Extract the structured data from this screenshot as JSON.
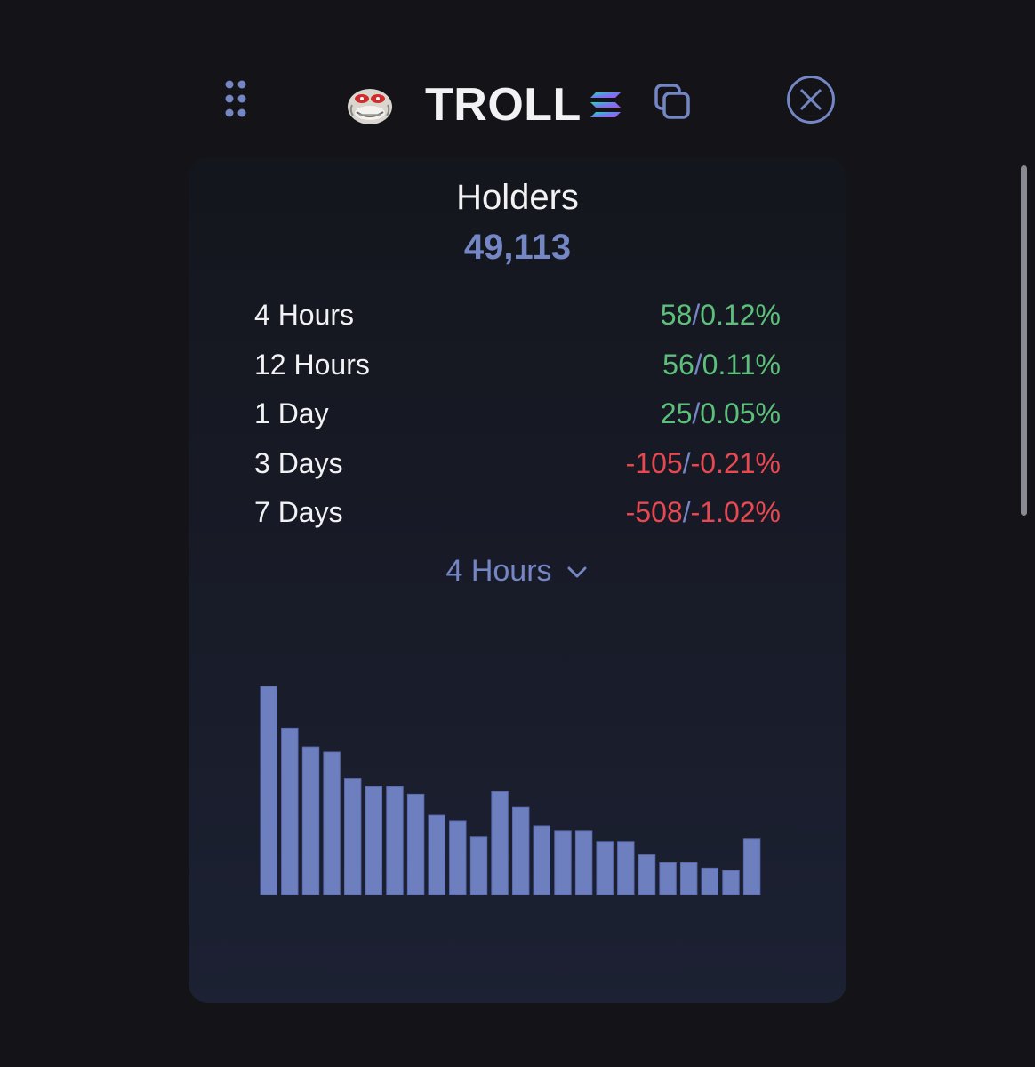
{
  "header": {
    "token_name": "TROLL",
    "token_icon": "troll-face-icon",
    "chain_icon": "solana-icon",
    "copy_icon": "copy-icon",
    "close_icon": "close-circle-icon",
    "drag_icon": "drag-handle-icon"
  },
  "card": {
    "title": "Holders",
    "total": "49,113",
    "stats": [
      {
        "label": "4 Hours",
        "count": "58",
        "percent": "0.12%",
        "trend": "up"
      },
      {
        "label": "12 Hours",
        "count": "56",
        "percent": "0.11%",
        "trend": "up"
      },
      {
        "label": "1 Day",
        "count": "25",
        "percent": "0.05%",
        "trend": "up"
      },
      {
        "label": "3 Days",
        "count": "-105",
        "percent": "-0.21%",
        "trend": "down"
      },
      {
        "label": "7 Days",
        "count": "-508",
        "percent": "-1.02%",
        "trend": "down"
      }
    ],
    "period_selector": "4 Hours"
  },
  "colors": {
    "background": "#131318",
    "accent": "#7586c4",
    "positive": "#5cc07a",
    "negative": "#e8484f",
    "bar_fill": "#6e7fc0"
  },
  "chart_data": {
    "type": "bar",
    "values": [
      79,
      63,
      56,
      54,
      44,
      41,
      41,
      38,
      30,
      28,
      22,
      39,
      33,
      26,
      24,
      24,
      20,
      20,
      15,
      12,
      12,
      10,
      9,
      21
    ],
    "ylim": [
      0,
      80
    ],
    "grid": false
  }
}
